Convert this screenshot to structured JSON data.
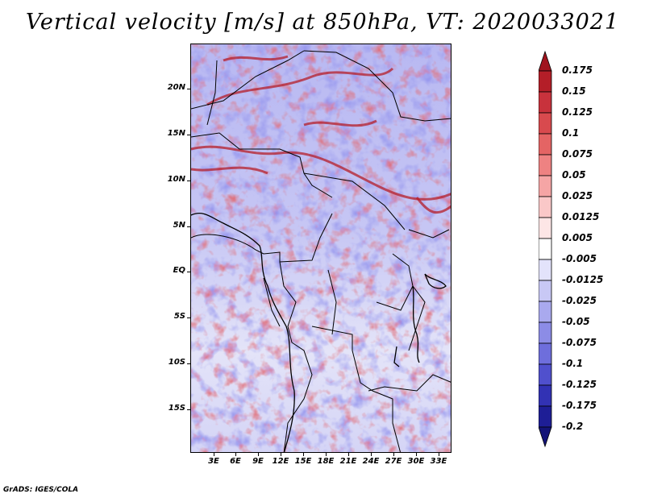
{
  "title": "Vertical velocity [m/s] at 850hPa, VT: 2020033021",
  "credit": "GrADS: IGES/COLA",
  "axes": {
    "y_labels": [
      "20N",
      "15N",
      "10N",
      "5N",
      "EQ",
      "5S",
      "10S",
      "15S"
    ],
    "x_labels": [
      "3E",
      "6E",
      "9E",
      "12E",
      "15E",
      "18E",
      "21E",
      "24E",
      "27E",
      "30E",
      "33E"
    ]
  },
  "colorbar": {
    "labels": [
      "0.175",
      "0.15",
      "0.125",
      "0.1",
      "0.075",
      "0.05",
      "0.025",
      "0.0125",
      "0.005",
      "-0.005",
      "-0.0125",
      "-0.025",
      "-0.05",
      "-0.075",
      "-0.1",
      "-0.125",
      "-0.175",
      "-0.2"
    ],
    "colors": [
      "#a0141e",
      "#b41e28",
      "#c8323c",
      "#d84a4e",
      "#e46464",
      "#ee8282",
      "#f5a5a5",
      "#fac8c8",
      "#fde6e6",
      "#ffffff",
      "#e3e3fb",
      "#c8c8f5",
      "#a9a9ee",
      "#8c8ce6",
      "#6e6edc",
      "#5050cd",
      "#3232b4",
      "#1e1e96",
      "#141478"
    ]
  }
}
